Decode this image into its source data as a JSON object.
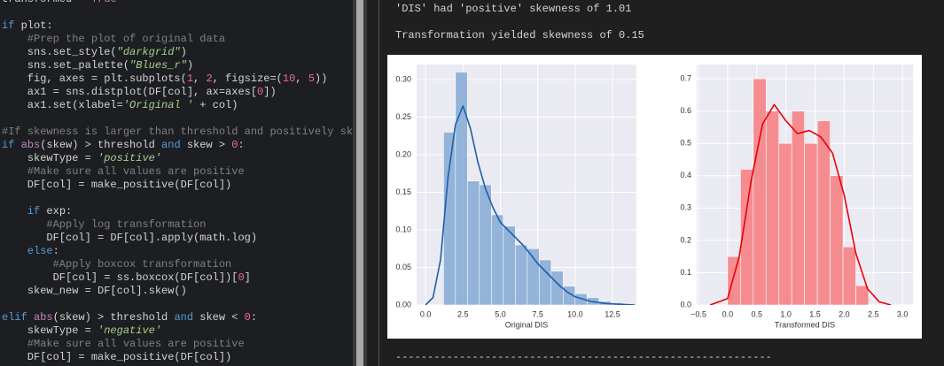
{
  "editor": {
    "lines": [
      [
        {
          "text": "transformed = ",
          "color": "#d4d4d4"
        },
        {
          "text": "True",
          "color": "#c586c0"
        }
      ],
      [],
      [
        {
          "text": "if",
          "color": "#569cd6"
        },
        {
          "text": " plot:",
          "color": "#d4d4d4"
        }
      ],
      [
        {
          "text": "    #Prep the plot of original data",
          "color": "#808080"
        }
      ],
      [
        {
          "text": "    sns.set_style(",
          "color": "#d4d4d4"
        },
        {
          "text": "\"darkgrid\"",
          "color": "#a6d38b",
          "italic": true
        },
        {
          "text": ")",
          "color": "#d4d4d4"
        }
      ],
      [
        {
          "text": "    sns.set_palette(",
          "color": "#d4d4d4"
        },
        {
          "text": "\"Blues_r\"",
          "color": "#a6d38b",
          "italic": true
        },
        {
          "text": ")",
          "color": "#d4d4d4"
        }
      ],
      [
        {
          "text": "    fig, axes = plt.subplots(",
          "color": "#d4d4d4"
        },
        {
          "text": "1",
          "color": "#f06c84"
        },
        {
          "text": ", ",
          "color": "#d4d4d4"
        },
        {
          "text": "2",
          "color": "#f06c84"
        },
        {
          "text": ", figsize=(",
          "color": "#d4d4d4"
        },
        {
          "text": "10",
          "color": "#f06c84"
        },
        {
          "text": ", ",
          "color": "#d4d4d4"
        },
        {
          "text": "5",
          "color": "#f06c84"
        },
        {
          "text": "))",
          "color": "#d4d4d4"
        }
      ],
      [
        {
          "text": "    ax1 = sns.distplot(DF[col], ax=axes[",
          "color": "#d4d4d4"
        },
        {
          "text": "0",
          "color": "#f06c84"
        },
        {
          "text": "])",
          "color": "#d4d4d4"
        }
      ],
      [
        {
          "text": "    ax1.set(xlabel=",
          "color": "#d4d4d4"
        },
        {
          "text": "'Original '",
          "color": "#a6d38b",
          "italic": true
        },
        {
          "text": " + col)",
          "color": "#d4d4d4"
        }
      ],
      [],
      [
        {
          "text": "#If skewness is larger than threshold and positively skew",
          "color": "#808080"
        }
      ],
      [
        {
          "text": "if",
          "color": "#569cd6"
        },
        {
          "text": " ",
          "color": "#d4d4d4"
        },
        {
          "text": "abs",
          "color": "#c586c0"
        },
        {
          "text": "(skew) > threshold ",
          "color": "#d4d4d4"
        },
        {
          "text": "and",
          "color": "#569cd6"
        },
        {
          "text": " skew > ",
          "color": "#d4d4d4"
        },
        {
          "text": "0",
          "color": "#f06c84"
        },
        {
          "text": ":",
          "color": "#d4d4d4"
        }
      ],
      [
        {
          "text": "    skewType = ",
          "color": "#d4d4d4"
        },
        {
          "text": "'positive'",
          "color": "#a6d38b",
          "italic": true
        }
      ],
      [
        {
          "text": "    #Make sure all values are positive",
          "color": "#808080"
        }
      ],
      [
        {
          "text": "    DF[col] = make_positive(DF[col])",
          "color": "#d4d4d4"
        }
      ],
      [],
      [
        {
          "text": "    if",
          "color": "#569cd6"
        },
        {
          "text": " exp:",
          "color": "#d4d4d4"
        }
      ],
      [
        {
          "text": "       #Apply log transformation",
          "color": "#808080"
        }
      ],
      [
        {
          "text": "       DF[col] = DF[col].apply(math.log)",
          "color": "#d4d4d4"
        }
      ],
      [
        {
          "text": "    else",
          "color": "#569cd6"
        },
        {
          "text": ":",
          "color": "#d4d4d4"
        }
      ],
      [
        {
          "text": "        #Apply boxcox transformation",
          "color": "#808080"
        }
      ],
      [
        {
          "text": "        DF[col] = ss.boxcox(DF[col])[",
          "color": "#d4d4d4"
        },
        {
          "text": "0",
          "color": "#f06c84"
        },
        {
          "text": "]",
          "color": "#d4d4d4"
        }
      ],
      [
        {
          "text": "    skew_new = DF[col].skew()",
          "color": "#d4d4d4"
        }
      ],
      [],
      [
        {
          "text": "elif",
          "color": "#569cd6"
        },
        {
          "text": " ",
          "color": "#d4d4d4"
        },
        {
          "text": "abs",
          "color": "#c586c0"
        },
        {
          "text": "(skew) > threshold ",
          "color": "#d4d4d4"
        },
        {
          "text": "and",
          "color": "#569cd6"
        },
        {
          "text": " skew < ",
          "color": "#d4d4d4"
        },
        {
          "text": "0",
          "color": "#f06c84"
        },
        {
          "text": ":",
          "color": "#d4d4d4"
        }
      ],
      [
        {
          "text": "    skewType = ",
          "color": "#d4d4d4"
        },
        {
          "text": "'negative'",
          "color": "#a6d38b",
          "italic": true
        }
      ],
      [
        {
          "text": "    #Make sure all values are positive",
          "color": "#808080"
        }
      ],
      [
        {
          "text": "    DF[col] = make_positive(DF[col])",
          "color": "#d4d4d4"
        }
      ]
    ]
  },
  "output": {
    "line1": "'DIS' had 'positive' skewness of 1.01",
    "line2": "Transformation yielded skewness of 0.15",
    "separator": "-----------------------------------------------------------"
  },
  "chart_data": [
    {
      "type": "histogram",
      "xlabel": "Original DIS",
      "color": "#93b3d9",
      "grid": true,
      "bins": [
        1.2,
        2.0,
        2.8,
        3.6,
        4.4,
        5.2,
        6.0,
        6.8,
        7.6,
        8.4,
        9.2,
        10.0,
        10.8,
        11.6,
        12.4,
        13.2
      ],
      "values": [
        0.23,
        0.31,
        0.165,
        0.16,
        0.12,
        0.105,
        0.08,
        0.075,
        0.06,
        0.045,
        0.025,
        0.015,
        0.01,
        0.005,
        0.003
      ],
      "kde": {
        "color": "#1f5fa8",
        "x": [
          0,
          0.5,
          1,
          1.5,
          2,
          2.5,
          3,
          3.5,
          4,
          4.5,
          5,
          5.5,
          6,
          6.5,
          7,
          7.5,
          8,
          8.5,
          9,
          9.5,
          10,
          11,
          12,
          13,
          14
        ],
        "values": [
          0.0,
          0.01,
          0.06,
          0.17,
          0.24,
          0.265,
          0.235,
          0.19,
          0.155,
          0.13,
          0.11,
          0.1,
          0.09,
          0.08,
          0.068,
          0.055,
          0.045,
          0.035,
          0.025,
          0.017,
          0.011,
          0.005,
          0.002,
          0.001,
          0.0
        ]
      },
      "xlim": [
        -0.6,
        14.1
      ],
      "ylim": [
        0,
        0.32
      ],
      "xticks": [
        {
          "value": 0,
          "label": "0.0"
        },
        2.5,
        {
          "value": 5,
          "label": "5.0"
        },
        7.5,
        {
          "value": 10,
          "label": "10.0"
        },
        12.5
      ],
      "yticks": [
        {
          "value": 0,
          "label": "0.00"
        },
        0.05,
        {
          "value": 0.1,
          "label": "0.10"
        },
        0.15,
        {
          "value": 0.2,
          "label": "0.20"
        },
        0.25,
        {
          "value": 0.3,
          "label": "0.30"
        }
      ]
    },
    {
      "type": "histogram",
      "xlabel": "Transformed DIS",
      "color": "#f58d90",
      "grid": true,
      "bins": [
        0,
        0.22,
        0.44,
        0.66,
        0.88,
        1.1,
        1.32,
        1.54,
        1.76,
        1.98,
        2.2,
        2.42
      ],
      "values": [
        0.15,
        0.42,
        0.7,
        0.6,
        0.5,
        0.6,
        0.5,
        0.57,
        0.4,
        0.18,
        0.06
      ],
      "kde": {
        "color": "#e8000b",
        "x": [
          -0.3,
          0,
          0.2,
          0.4,
          0.6,
          0.8,
          1.0,
          1.2,
          1.4,
          1.6,
          1.8,
          2.0,
          2.2,
          2.4,
          2.6,
          2.8
        ],
        "values": [
          0,
          0.02,
          0.15,
          0.38,
          0.56,
          0.62,
          0.57,
          0.53,
          0.54,
          0.52,
          0.47,
          0.34,
          0.16,
          0.05,
          0.01,
          0
        ]
      },
      "xlim": [
        -0.53,
        3.18
      ],
      "ylim": [
        0,
        0.744
      ],
      "xticks": [
        {
          "value": -0.5,
          "label": "−0.5"
        },
        {
          "value": 0,
          "label": "0.0"
        },
        0.5,
        {
          "value": 1,
          "label": "1.0"
        },
        1.5,
        {
          "value": 2,
          "label": "2.0"
        },
        2.5,
        {
          "value": 3,
          "label": "3.0"
        }
      ],
      "yticks": [
        {
          "value": 0,
          "label": "0.0"
        },
        0.1,
        0.2,
        0.3,
        0.4,
        0.5,
        0.6,
        0.7
      ]
    }
  ]
}
